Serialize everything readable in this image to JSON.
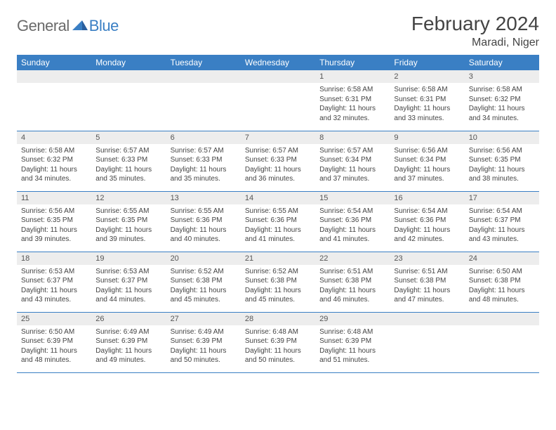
{
  "logo": {
    "general": "General",
    "blue": "Blue"
  },
  "title": "February 2024",
  "location": "Maradi, Niger",
  "day_headers": [
    "Sunday",
    "Monday",
    "Tuesday",
    "Wednesday",
    "Thursday",
    "Friday",
    "Saturday"
  ],
  "colors": {
    "header_bg": "#3a7fc4",
    "header_text": "#ffffff",
    "daynum_bg": "#ededed",
    "text": "#444444",
    "rule": "#3a7fc4"
  },
  "weeks": [
    [
      {
        "n": "",
        "sunrise": "",
        "sunset": "",
        "daylight": ""
      },
      {
        "n": "",
        "sunrise": "",
        "sunset": "",
        "daylight": ""
      },
      {
        "n": "",
        "sunrise": "",
        "sunset": "",
        "daylight": ""
      },
      {
        "n": "",
        "sunrise": "",
        "sunset": "",
        "daylight": ""
      },
      {
        "n": "1",
        "sunrise": "Sunrise: 6:58 AM",
        "sunset": "Sunset: 6:31 PM",
        "daylight": "Daylight: 11 hours and 32 minutes."
      },
      {
        "n": "2",
        "sunrise": "Sunrise: 6:58 AM",
        "sunset": "Sunset: 6:31 PM",
        "daylight": "Daylight: 11 hours and 33 minutes."
      },
      {
        "n": "3",
        "sunrise": "Sunrise: 6:58 AM",
        "sunset": "Sunset: 6:32 PM",
        "daylight": "Daylight: 11 hours and 34 minutes."
      }
    ],
    [
      {
        "n": "4",
        "sunrise": "Sunrise: 6:58 AM",
        "sunset": "Sunset: 6:32 PM",
        "daylight": "Daylight: 11 hours and 34 minutes."
      },
      {
        "n": "5",
        "sunrise": "Sunrise: 6:57 AM",
        "sunset": "Sunset: 6:33 PM",
        "daylight": "Daylight: 11 hours and 35 minutes."
      },
      {
        "n": "6",
        "sunrise": "Sunrise: 6:57 AM",
        "sunset": "Sunset: 6:33 PM",
        "daylight": "Daylight: 11 hours and 35 minutes."
      },
      {
        "n": "7",
        "sunrise": "Sunrise: 6:57 AM",
        "sunset": "Sunset: 6:33 PM",
        "daylight": "Daylight: 11 hours and 36 minutes."
      },
      {
        "n": "8",
        "sunrise": "Sunrise: 6:57 AM",
        "sunset": "Sunset: 6:34 PM",
        "daylight": "Daylight: 11 hours and 37 minutes."
      },
      {
        "n": "9",
        "sunrise": "Sunrise: 6:56 AM",
        "sunset": "Sunset: 6:34 PM",
        "daylight": "Daylight: 11 hours and 37 minutes."
      },
      {
        "n": "10",
        "sunrise": "Sunrise: 6:56 AM",
        "sunset": "Sunset: 6:35 PM",
        "daylight": "Daylight: 11 hours and 38 minutes."
      }
    ],
    [
      {
        "n": "11",
        "sunrise": "Sunrise: 6:56 AM",
        "sunset": "Sunset: 6:35 PM",
        "daylight": "Daylight: 11 hours and 39 minutes."
      },
      {
        "n": "12",
        "sunrise": "Sunrise: 6:55 AM",
        "sunset": "Sunset: 6:35 PM",
        "daylight": "Daylight: 11 hours and 39 minutes."
      },
      {
        "n": "13",
        "sunrise": "Sunrise: 6:55 AM",
        "sunset": "Sunset: 6:36 PM",
        "daylight": "Daylight: 11 hours and 40 minutes."
      },
      {
        "n": "14",
        "sunrise": "Sunrise: 6:55 AM",
        "sunset": "Sunset: 6:36 PM",
        "daylight": "Daylight: 11 hours and 41 minutes."
      },
      {
        "n": "15",
        "sunrise": "Sunrise: 6:54 AM",
        "sunset": "Sunset: 6:36 PM",
        "daylight": "Daylight: 11 hours and 41 minutes."
      },
      {
        "n": "16",
        "sunrise": "Sunrise: 6:54 AM",
        "sunset": "Sunset: 6:36 PM",
        "daylight": "Daylight: 11 hours and 42 minutes."
      },
      {
        "n": "17",
        "sunrise": "Sunrise: 6:54 AM",
        "sunset": "Sunset: 6:37 PM",
        "daylight": "Daylight: 11 hours and 43 minutes."
      }
    ],
    [
      {
        "n": "18",
        "sunrise": "Sunrise: 6:53 AM",
        "sunset": "Sunset: 6:37 PM",
        "daylight": "Daylight: 11 hours and 43 minutes."
      },
      {
        "n": "19",
        "sunrise": "Sunrise: 6:53 AM",
        "sunset": "Sunset: 6:37 PM",
        "daylight": "Daylight: 11 hours and 44 minutes."
      },
      {
        "n": "20",
        "sunrise": "Sunrise: 6:52 AM",
        "sunset": "Sunset: 6:38 PM",
        "daylight": "Daylight: 11 hours and 45 minutes."
      },
      {
        "n": "21",
        "sunrise": "Sunrise: 6:52 AM",
        "sunset": "Sunset: 6:38 PM",
        "daylight": "Daylight: 11 hours and 45 minutes."
      },
      {
        "n": "22",
        "sunrise": "Sunrise: 6:51 AM",
        "sunset": "Sunset: 6:38 PM",
        "daylight": "Daylight: 11 hours and 46 minutes."
      },
      {
        "n": "23",
        "sunrise": "Sunrise: 6:51 AM",
        "sunset": "Sunset: 6:38 PM",
        "daylight": "Daylight: 11 hours and 47 minutes."
      },
      {
        "n": "24",
        "sunrise": "Sunrise: 6:50 AM",
        "sunset": "Sunset: 6:38 PM",
        "daylight": "Daylight: 11 hours and 48 minutes."
      }
    ],
    [
      {
        "n": "25",
        "sunrise": "Sunrise: 6:50 AM",
        "sunset": "Sunset: 6:39 PM",
        "daylight": "Daylight: 11 hours and 48 minutes."
      },
      {
        "n": "26",
        "sunrise": "Sunrise: 6:49 AM",
        "sunset": "Sunset: 6:39 PM",
        "daylight": "Daylight: 11 hours and 49 minutes."
      },
      {
        "n": "27",
        "sunrise": "Sunrise: 6:49 AM",
        "sunset": "Sunset: 6:39 PM",
        "daylight": "Daylight: 11 hours and 50 minutes."
      },
      {
        "n": "28",
        "sunrise": "Sunrise: 6:48 AM",
        "sunset": "Sunset: 6:39 PM",
        "daylight": "Daylight: 11 hours and 50 minutes."
      },
      {
        "n": "29",
        "sunrise": "Sunrise: 6:48 AM",
        "sunset": "Sunset: 6:39 PM",
        "daylight": "Daylight: 11 hours and 51 minutes."
      },
      {
        "n": "",
        "sunrise": "",
        "sunset": "",
        "daylight": ""
      },
      {
        "n": "",
        "sunrise": "",
        "sunset": "",
        "daylight": ""
      }
    ]
  ]
}
